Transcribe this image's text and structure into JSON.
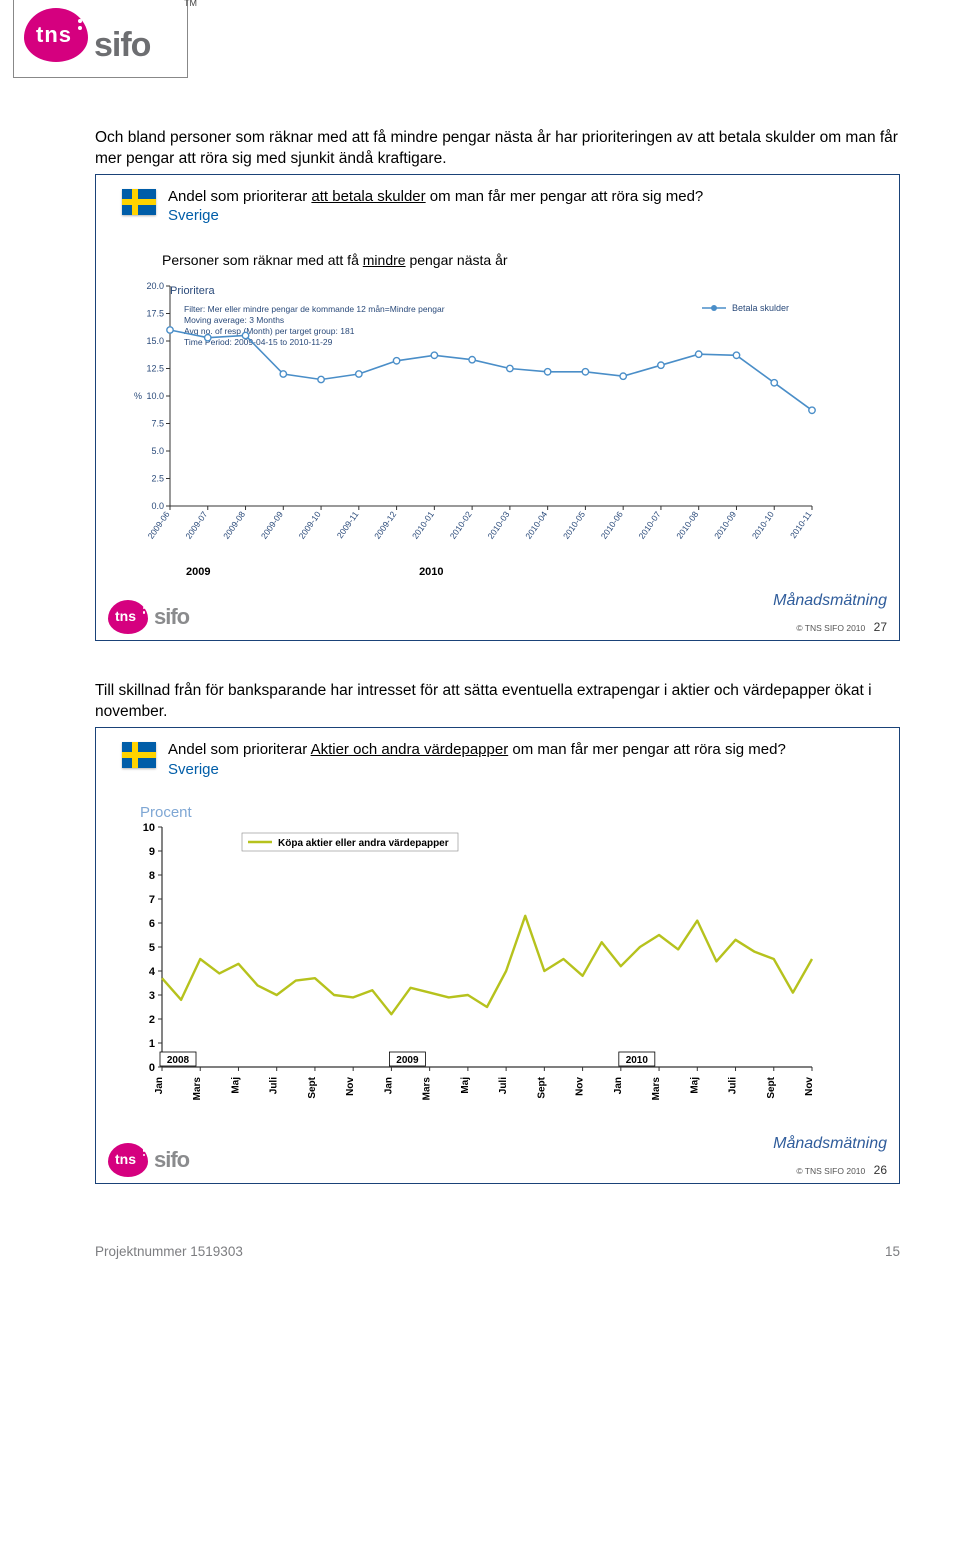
{
  "logo": {
    "brand": "tns",
    "sub": "sifo",
    "tm": "TM"
  },
  "para1": "Och bland personer som räknar med att få mindre pengar nästa år har prioriteringen av att betala skulder om man får mer pengar att röra sig med sjunkit ändå kraftigare.",
  "slide1": {
    "title_pre": "Andel som prioriterar ",
    "title_u": "att betala skulder",
    "title_post": " om man får mer pengar att röra sig med?",
    "sverige": "Sverige",
    "subhead_pre": "Personer som räknar med att få ",
    "subhead_u": "mindre",
    "subhead_post": " pengar nästa år",
    "inner_title": "Prioritera",
    "filter_lines": [
      "Filter: Mer eller mindre pengar de kommande 12 mån=Mindre pengar",
      "Moving average: 3 Months",
      "Avg no. of resp (Month) per target group: 181",
      "Time Period: 2009-04-15 to 2010-11-29"
    ],
    "legend": "Betala skulder",
    "ylabel": "%",
    "yticks": [
      "0.0",
      "2.5",
      "5.0",
      "7.5",
      "10.0",
      "12.5",
      "15.0",
      "17.5",
      "20.0"
    ],
    "ylim": [
      0,
      20
    ],
    "ytick_vals": [
      0,
      2.5,
      5,
      7.5,
      10,
      12.5,
      15,
      17.5,
      20
    ],
    "x_labels": [
      "2009-06",
      "2009-07",
      "2009-08",
      "2009-09",
      "2009-10",
      "2009-11",
      "2009-12",
      "2010-01",
      "2010-02",
      "2010-03",
      "2010-04",
      "2010-05",
      "2010-06",
      "2010-07",
      "2010-08",
      "2010-09",
      "2010-10",
      "2010-11"
    ],
    "values": [
      16.0,
      15.3,
      15.5,
      12.0,
      11.5,
      12.0,
      13.2,
      13.7,
      13.3,
      12.5,
      12.2,
      12.2,
      11.8,
      12.8,
      13.8,
      13.7,
      11.2,
      8.7
    ],
    "line_color": "#4a8ec8",
    "marker_color": "#4a8ec8",
    "axis_color": "#333333",
    "year_2009": "2009",
    "year_2010": "2010",
    "manad": "Månadsmätning",
    "copyright": "© TNS SIFO 2010",
    "page": "27"
  },
  "para2": "Till skillnad från för banksparande har intresset för att sätta eventuella extrapengar i aktier och värdepapper ökat i november.",
  "slide2": {
    "title_pre": "Andel som prioriterar ",
    "title_u": "Aktier och andra värdepapper",
    "title_post": " om man får mer pengar att röra sig med?",
    "sverige": "Sverige",
    "procent": "Procent",
    "legend": "Köpa aktier eller andra värdepapper",
    "ylim": [
      0,
      10
    ],
    "yticks": [
      "0",
      "1",
      "2",
      "3",
      "4",
      "5",
      "6",
      "7",
      "8",
      "9",
      "10"
    ],
    "ytick_vals": [
      0,
      1,
      2,
      3,
      4,
      5,
      6,
      7,
      8,
      9,
      10
    ],
    "x_major": [
      "Jan",
      "Mars",
      "Maj",
      "Juli",
      "Sept",
      "Nov",
      "Jan",
      "Mars",
      "Maj",
      "Juli",
      "Sept",
      "Nov",
      "Jan",
      "Mars",
      "Maj",
      "Juli",
      "Sept",
      "Nov"
    ],
    "year_2008": "2008",
    "year_2009": "2009",
    "year_2010": "2010",
    "values": [
      3.7,
      2.8,
      4.5,
      3.9,
      4.3,
      3.4,
      3.0,
      3.6,
      3.7,
      3.0,
      2.9,
      3.2,
      2.2,
      3.3,
      3.1,
      2.9,
      3.0,
      2.5,
      4.0,
      6.3,
      4.0,
      4.5,
      3.8,
      5.2,
      4.2,
      5.0,
      5.5,
      4.9,
      6.1,
      4.4,
      5.3,
      4.8,
      4.5,
      3.1,
      4.5
    ],
    "line_color": "#b6c21d",
    "axis_color": "#333333",
    "manad": "Månadsmätning",
    "copyright": "© TNS SIFO 2010",
    "page": "26"
  },
  "footer": {
    "proj": "Projektnummer 1519303",
    "pagenum": "15"
  }
}
